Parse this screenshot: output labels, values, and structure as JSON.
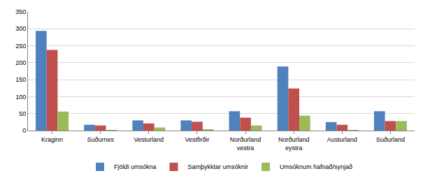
{
  "chart_data": {
    "type": "bar",
    "categories": [
      "Kraginn",
      "Suðurnes",
      "Vesturland",
      "Vestfirðir",
      "Norðurland vestra",
      "Norðurland eystra",
      "Austurland",
      "Suðurland"
    ],
    "series": [
      {
        "name": "Fjöldi umsókna",
        "color": "#4f81bd",
        "values": [
          294,
          17,
          30,
          30,
          57,
          189,
          25,
          57
        ]
      },
      {
        "name": "Samþykktar umsóknir",
        "color": "#c0504d",
        "values": [
          238,
          15,
          21,
          26,
          38,
          124,
          17,
          28
        ]
      },
      {
        "name": "Umsóknum hafnað/synjað",
        "color": "#9bbb59",
        "values": [
          56,
          2,
          9,
          4,
          15,
          44,
          2,
          28
        ]
      }
    ],
    "ylim": [
      0,
      350
    ],
    "yticks": [
      0,
      50,
      100,
      150,
      200,
      250,
      300,
      350
    ],
    "grid": true,
    "legend": "bottom"
  }
}
